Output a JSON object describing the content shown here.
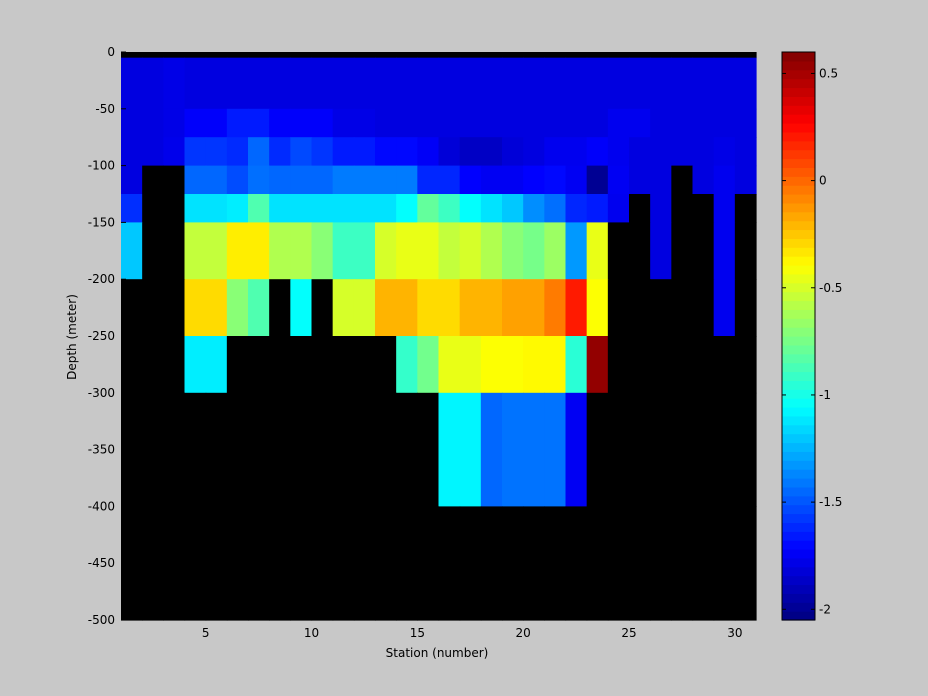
{
  "chart_data": [
    {
      "type": "heatmap",
      "title": "",
      "xlabel": "Station (number)",
      "ylabel": "Depth (meter)",
      "xlim": [
        1,
        31
      ],
      "ylim": [
        -500,
        0
      ],
      "xticks": [
        5,
        10,
        15,
        20,
        25,
        30
      ],
      "yticks": [
        0,
        -50,
        -100,
        -150,
        -200,
        -250,
        -300,
        -350,
        -400,
        -450,
        -500
      ],
      "x": [
        1,
        2,
        3,
        4,
        5,
        6,
        7,
        8,
        9,
        10,
        11,
        12,
        13,
        14,
        15,
        16,
        17,
        18,
        19,
        20,
        21,
        22,
        23,
        24,
        25,
        26,
        27,
        28,
        29,
        30
      ],
      "depth_bins": [
        [
          0,
          -5
        ],
        [
          -5,
          -50
        ],
        [
          -50,
          -75
        ],
        [
          -75,
          -100
        ],
        [
          -100,
          -125
        ],
        [
          -125,
          -150
        ],
        [
          -150,
          -200
        ],
        [
          -200,
          -250
        ],
        [
          -250,
          -300
        ],
        [
          -300,
          -400
        ],
        [
          -400,
          -500
        ]
      ],
      "missing_color": "#000000",
      "values": [
        [
          null,
          null,
          null,
          null,
          null,
          null,
          null,
          null,
          null,
          null,
          null,
          null,
          null,
          null,
          null,
          null,
          null,
          null,
          null,
          null,
          null,
          null,
          null,
          null,
          null,
          null,
          null,
          null,
          null,
          null
        ],
        [
          -1.8,
          -1.8,
          -1.78,
          -1.8,
          -1.8,
          -1.8,
          -1.8,
          -1.8,
          -1.8,
          -1.8,
          -1.8,
          -1.8,
          -1.8,
          -1.8,
          -1.8,
          -1.8,
          -1.8,
          -1.8,
          -1.8,
          -1.8,
          -1.8,
          -1.8,
          -1.8,
          -1.8,
          -1.8,
          -1.8,
          -1.8,
          -1.8,
          -1.8,
          -1.8
        ],
        [
          -1.8,
          -1.8,
          -1.78,
          -1.73,
          -1.73,
          -1.65,
          -1.65,
          -1.73,
          -1.73,
          -1.73,
          -1.78,
          -1.78,
          -1.8,
          -1.8,
          -1.8,
          -1.8,
          -1.8,
          -1.8,
          -1.8,
          -1.8,
          -1.8,
          -1.8,
          -1.8,
          -1.76,
          -1.76,
          -1.8,
          -1.8,
          -1.8,
          -1.8,
          -1.8
        ],
        [
          -1.8,
          -1.8,
          -1.77,
          -1.58,
          -1.58,
          -1.61,
          -1.45,
          -1.61,
          -1.53,
          -1.58,
          -1.65,
          -1.65,
          -1.7,
          -1.7,
          -1.74,
          -1.82,
          -1.87,
          -1.87,
          -1.82,
          -1.8,
          -1.76,
          -1.76,
          -1.73,
          -1.76,
          -1.8,
          -1.8,
          -1.8,
          -1.8,
          -1.78,
          -1.8
        ],
        [
          -1.8,
          null,
          null,
          -1.45,
          -1.45,
          -1.52,
          -1.43,
          -1.45,
          -1.45,
          -1.45,
          -1.4,
          -1.4,
          -1.4,
          -1.4,
          -1.62,
          -1.62,
          -1.72,
          -1.75,
          -1.75,
          -1.72,
          -1.7,
          -1.75,
          -2.0,
          -1.75,
          -1.8,
          -1.8,
          null,
          -1.8,
          -1.76,
          -1.8
        ],
        [
          -1.6,
          null,
          null,
          -1.13,
          -1.13,
          -1.1,
          -0.85,
          -1.13,
          -1.13,
          -1.13,
          -1.13,
          -1.13,
          -1.13,
          -1.05,
          -0.8,
          -0.9,
          -1.05,
          -1.13,
          -1.2,
          -1.35,
          -1.43,
          -1.62,
          -1.65,
          -1.76,
          null,
          -1.8,
          null,
          null,
          -1.76,
          null
        ],
        [
          -1.2,
          null,
          null,
          -0.55,
          -0.55,
          -0.35,
          -0.35,
          -0.6,
          -0.6,
          -0.7,
          -0.9,
          -0.9,
          -0.5,
          -0.45,
          -0.45,
          -0.55,
          -0.5,
          -0.6,
          -0.7,
          -0.75,
          -0.65,
          -1.32,
          -0.45,
          null,
          null,
          -1.8,
          null,
          null,
          -1.76,
          null
        ],
        [
          null,
          null,
          null,
          -0.3,
          -0.3,
          -0.7,
          -0.85,
          null,
          -1.05,
          null,
          -0.5,
          -0.5,
          -0.2,
          -0.2,
          -0.3,
          -0.3,
          -0.2,
          -0.2,
          -0.15,
          -0.15,
          -0.05,
          0.2,
          -0.4,
          null,
          null,
          null,
          null,
          null,
          -1.76,
          null
        ],
        [
          null,
          null,
          null,
          -1.1,
          -1.1,
          null,
          null,
          null,
          null,
          null,
          null,
          null,
          null,
          -0.92,
          -0.76,
          -0.45,
          -0.45,
          -0.4,
          -0.4,
          -0.38,
          -0.38,
          -0.95,
          0.55,
          null,
          null,
          null,
          null,
          null,
          null,
          null
        ],
        [
          null,
          null,
          null,
          null,
          null,
          null,
          null,
          null,
          null,
          null,
          null,
          null,
          null,
          null,
          null,
          -1.08,
          -1.08,
          -1.45,
          -1.42,
          -1.42,
          -1.42,
          -1.75,
          null,
          null,
          null,
          null,
          null,
          null,
          null,
          null
        ],
        [
          null,
          null,
          null,
          null,
          null,
          null,
          null,
          null,
          null,
          null,
          null,
          null,
          null,
          null,
          null,
          null,
          null,
          null,
          null,
          null,
          null,
          null,
          null,
          null,
          null,
          null,
          null,
          null,
          null,
          null
        ]
      ]
    },
    {
      "type": "colorbar",
      "colormap": "jet",
      "clim": [
        -2.05,
        0.6
      ],
      "ticks": [
        0.5,
        0,
        -0.5,
        -1,
        -1.5,
        -2
      ]
    }
  ]
}
